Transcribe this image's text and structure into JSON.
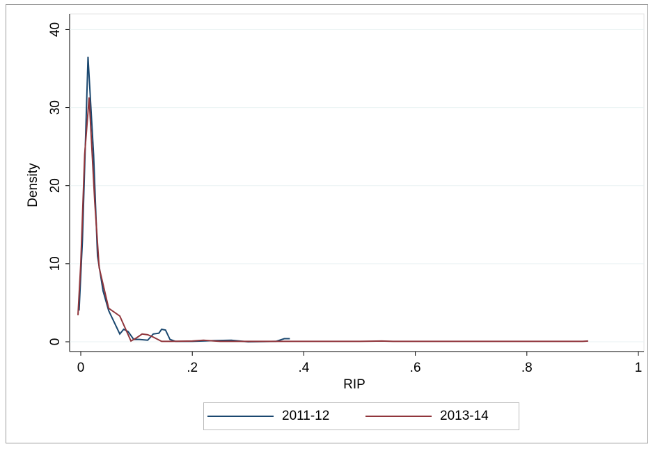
{
  "chart_data": {
    "type": "line",
    "x_label": "RIP",
    "y_label": "Density",
    "xlim": [
      -0.02,
      1.01
    ],
    "ylim": [
      -1.25,
      42
    ],
    "xticks": [
      0,
      {
        "value": 0.2,
        "label": ".2"
      },
      {
        "value": 0.4,
        "label": ".4"
      },
      {
        "value": 0.6,
        "label": ".6"
      },
      {
        "value": 0.8,
        "label": ".8"
      },
      1
    ],
    "yticks": [
      0,
      10,
      20,
      30,
      40
    ],
    "grid": true,
    "legend": "bottom",
    "series": [
      {
        "name": "2011-12",
        "color": "#1a476f",
        "x": [
          -0.003,
          0.003,
          0.013,
          0.023,
          0.03,
          0.04,
          0.05,
          0.06,
          0.07,
          0.077,
          0.085,
          0.095,
          0.105,
          0.12,
          0.13,
          0.14,
          0.145,
          0.152,
          0.16,
          0.17,
          0.2,
          0.24,
          0.27,
          0.3,
          0.35,
          0.365,
          0.375
        ],
        "values": [
          4,
          13,
          36.5,
          24,
          11,
          6.5,
          4,
          2.5,
          1,
          1.6,
          1.3,
          0.3,
          0.3,
          0.2,
          1.0,
          1.1,
          1.6,
          1.5,
          0.3,
          0.05,
          0.05,
          0.15,
          0.2,
          0,
          0.05,
          0.4,
          0.4
        ]
      },
      {
        "name": "2013-14",
        "color": "#90353b",
        "x": [
          -0.005,
          0,
          0.007,
          0.015,
          0.025,
          0.033,
          0.05,
          0.07,
          0.09,
          0.1,
          0.11,
          0.12,
          0.13,
          0.145,
          0.16,
          0.2,
          0.22,
          0.25,
          0.5,
          0.54,
          0.56,
          0.9,
          0.91
        ],
        "values": [
          3.4,
          10,
          24,
          31.3,
          18,
          9.5,
          4.3,
          3.3,
          0.1,
          0.5,
          1.0,
          0.9,
          0.6,
          0.05,
          0.05,
          0.1,
          0.2,
          0.05,
          0.05,
          0.1,
          0.05,
          0.05,
          0.1
        ]
      }
    ]
  }
}
